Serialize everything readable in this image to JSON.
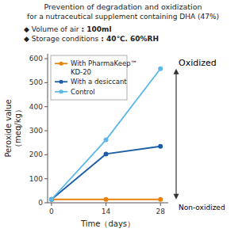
{
  "chart_data": {
    "type": "line",
    "title": "Prevention of degradation and oxidization",
    "subtitle": "for a nutraceutical supplement containing DHA (47%)",
    "annotations": [
      {
        "label": "◆ Volume of air",
        "detail": " : 100ml"
      },
      {
        "label": "◆ Storage conditions",
        "detail": " : 40℃. 60%RH"
      },
      {
        "text": "Oxidized",
        "y": 558
      },
      {
        "text": "Non-oxidized",
        "y": 14
      }
    ],
    "x_label": "Time（days）",
    "y_label": "Peroxide value\n（meq/kg）",
    "x": [
      0,
      14,
      28
    ],
    "series": [
      {
        "name": "With PharmaKeep™\nKD-20",
        "color": "#E8820C",
        "marker": "circle",
        "values": [
          14,
          14,
          14
        ]
      },
      {
        "name": "With a desiccant",
        "color": "#1B5EA6",
        "marker": "circle",
        "values": [
          14,
          203,
          235
        ]
      },
      {
        "name": "Control",
        "color": "#5BB8E8",
        "marker": "circle",
        "values": [
          14,
          262,
          558
        ]
      }
    ],
    "xlim": [
      -1,
      30
    ],
    "ylim": [
      0,
      620
    ],
    "xticks": [
      0,
      14,
      28
    ],
    "yticks": [
      0,
      100,
      200,
      300,
      400,
      500,
      600
    ],
    "grid": false,
    "legend": "upper left"
  }
}
